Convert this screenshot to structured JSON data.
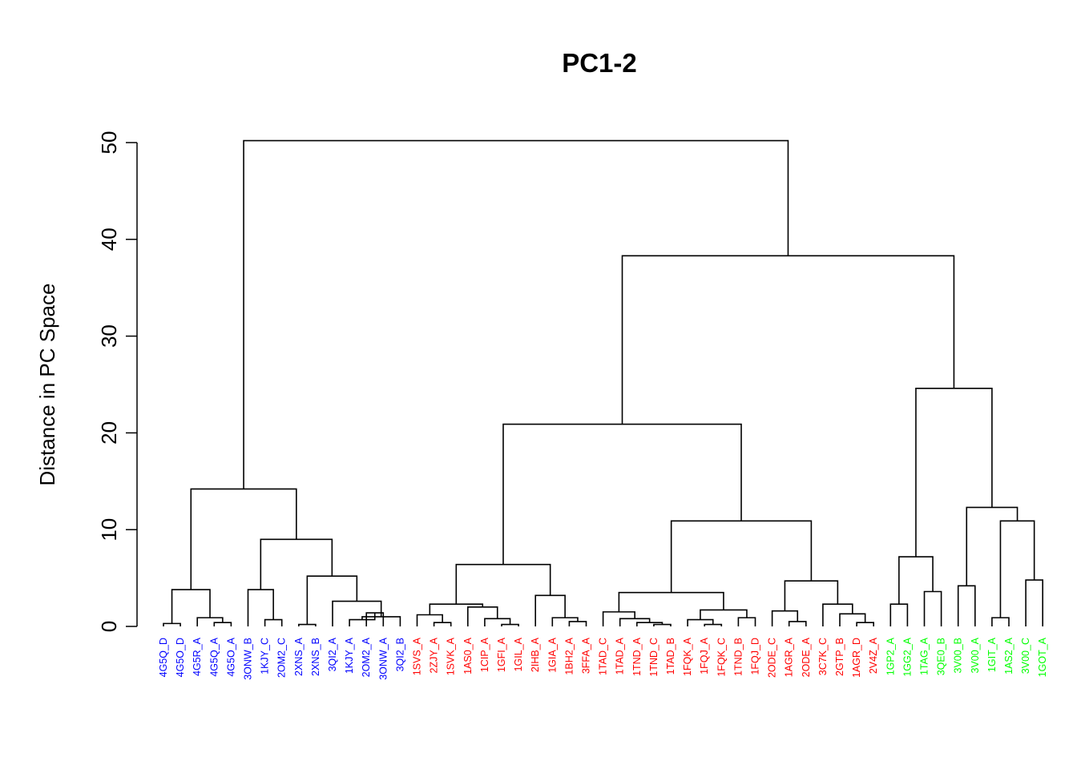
{
  "chart_data": {
    "type": "dendrogram",
    "title": "PC1-2",
    "ylabel": "Distance in PC Space",
    "ylim": [
      0,
      50
    ],
    "yticks": [
      0,
      10,
      20,
      30,
      40,
      50
    ],
    "colors": {
      "blue": "#0000ff",
      "red": "#ff0000",
      "green": "#00ff00",
      "line": "#000000"
    },
    "leaves": [
      {
        "label": "4G5Q_D",
        "color": "blue"
      },
      {
        "label": "4G5O_D",
        "color": "blue"
      },
      {
        "label": "4G5R_A",
        "color": "blue"
      },
      {
        "label": "4G5Q_A",
        "color": "blue"
      },
      {
        "label": "4G5O_A",
        "color": "blue"
      },
      {
        "label": "3ONW_B",
        "color": "blue"
      },
      {
        "label": "1KJY_C",
        "color": "blue"
      },
      {
        "label": "2OM2_C",
        "color": "blue"
      },
      {
        "label": "2XNS_A",
        "color": "blue"
      },
      {
        "label": "2XNS_B",
        "color": "blue"
      },
      {
        "label": "3QI2_A",
        "color": "blue"
      },
      {
        "label": "1KJY_A",
        "color": "blue"
      },
      {
        "label": "2OM2_A",
        "color": "blue"
      },
      {
        "label": "3ONW_A",
        "color": "blue"
      },
      {
        "label": "3QI2_B",
        "color": "blue"
      },
      {
        "label": "1SVS_A",
        "color": "red"
      },
      {
        "label": "2ZJY_A",
        "color": "red"
      },
      {
        "label": "1SVK_A",
        "color": "red"
      },
      {
        "label": "1AS0_A",
        "color": "red"
      },
      {
        "label": "1CIP_A",
        "color": "red"
      },
      {
        "label": "1GFI_A",
        "color": "red"
      },
      {
        "label": "1GIL_A",
        "color": "red"
      },
      {
        "label": "2IHB_A",
        "color": "red"
      },
      {
        "label": "1GIA_A",
        "color": "red"
      },
      {
        "label": "1BH2_A",
        "color": "red"
      },
      {
        "label": "3FFA_A",
        "color": "red"
      },
      {
        "label": "1TAD_C",
        "color": "red"
      },
      {
        "label": "1TAD_A",
        "color": "red"
      },
      {
        "label": "1TND_A",
        "color": "red"
      },
      {
        "label": "1TND_C",
        "color": "red"
      },
      {
        "label": "1TAD_B",
        "color": "red"
      },
      {
        "label": "1FQK_A",
        "color": "red"
      },
      {
        "label": "1FQJ_A",
        "color": "red"
      },
      {
        "label": "1FQK_C",
        "color": "red"
      },
      {
        "label": "1TND_B",
        "color": "red"
      },
      {
        "label": "1FQJ_D",
        "color": "red"
      },
      {
        "label": "2ODE_C",
        "color": "red"
      },
      {
        "label": "1AGR_A",
        "color": "red"
      },
      {
        "label": "2ODE_A",
        "color": "red"
      },
      {
        "label": "3C7K_C",
        "color": "red"
      },
      {
        "label": "2GTP_B",
        "color": "red"
      },
      {
        "label": "1AGR_D",
        "color": "red"
      },
      {
        "label": "2V4Z_A",
        "color": "red"
      },
      {
        "label": "1GP2_A",
        "color": "green"
      },
      {
        "label": "1GG2_A",
        "color": "green"
      },
      {
        "label": "1TAG_A",
        "color": "green"
      },
      {
        "label": "3QE0_B",
        "color": "green"
      },
      {
        "label": "3V00_B",
        "color": "green"
      },
      {
        "label": "3V00_A",
        "color": "green"
      },
      {
        "label": "1GIT_A",
        "color": "green"
      },
      {
        "label": "1AS2_A",
        "color": "green"
      },
      {
        "label": "3V00_C",
        "color": "green"
      },
      {
        "label": "1GOT_A",
        "color": "green"
      }
    ],
    "merges": [
      [
        -1,
        -2,
        0.3
      ],
      [
        -4,
        -5,
        0.4
      ],
      [
        -3,
        2,
        0.9
      ],
      [
        1,
        3,
        3.8
      ],
      [
        -7,
        -8,
        0.7
      ],
      [
        -6,
        5,
        3.8
      ],
      [
        -9,
        -10,
        0.2
      ],
      [
        -13,
        -14,
        1.4
      ],
      [
        -12,
        8,
        0.7
      ],
      [
        -15,
        9,
        1.0
      ],
      [
        -11,
        10,
        2.6
      ],
      [
        7,
        11,
        5.2
      ],
      [
        6,
        12,
        9.0
      ],
      [
        4,
        13,
        14.2
      ],
      [
        -17,
        -18,
        0.4
      ],
      [
        -16,
        15,
        1.2
      ],
      [
        -21,
        -22,
        0.2
      ],
      [
        -20,
        17,
        0.8
      ],
      [
        -19,
        18,
        2.0
      ],
      [
        16,
        19,
        2.3
      ],
      [
        -25,
        -26,
        0.5
      ],
      [
        -24,
        21,
        0.9
      ],
      [
        -23,
        22,
        3.2
      ],
      [
        20,
        23,
        6.4
      ],
      [
        -30,
        -31,
        0.2
      ],
      [
        -29,
        25,
        0.4
      ],
      [
        -28,
        26,
        0.8
      ],
      [
        -27,
        27,
        1.5
      ],
      [
        -33,
        -34,
        0.2
      ],
      [
        -32,
        29,
        0.7
      ],
      [
        -35,
        -36,
        0.9
      ],
      [
        30,
        31,
        1.7
      ],
      [
        28,
        32,
        3.5
      ],
      [
        -38,
        -39,
        0.5
      ],
      [
        -37,
        34,
        1.6
      ],
      [
        -42,
        -43,
        0.4
      ],
      [
        -41,
        36,
        1.3
      ],
      [
        -40,
        37,
        2.3
      ],
      [
        35,
        38,
        4.7
      ],
      [
        33,
        39,
        10.9
      ],
      [
        24,
        40,
        20.9
      ],
      [
        -44,
        -45,
        2.3
      ],
      [
        -46,
        -47,
        3.6
      ],
      [
        42,
        43,
        7.2
      ],
      [
        -48,
        -49,
        4.2
      ],
      [
        -52,
        -53,
        4.8
      ],
      [
        -50,
        -51,
        0.9
      ],
      [
        47,
        46,
        10.9
      ],
      [
        45,
        48,
        12.3
      ],
      [
        44,
        49,
        24.6
      ],
      [
        41,
        50,
        38.3
      ],
      [
        14,
        51,
        50.2
      ]
    ]
  }
}
